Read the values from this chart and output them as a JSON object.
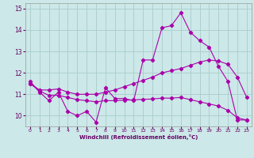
{
  "xlabel": "Windchill (Refroidissement éolien,°C)",
  "background_color": "#cce8e8",
  "grid_color": "#aacccc",
  "line_color": "#aa00aa",
  "x": [
    0,
    1,
    2,
    3,
    4,
    5,
    6,
    7,
    8,
    9,
    10,
    11,
    12,
    13,
    14,
    15,
    16,
    17,
    18,
    19,
    20,
    21,
    22,
    23
  ],
  "line1": [
    11.6,
    11.1,
    10.7,
    11.1,
    10.2,
    10.0,
    10.2,
    9.7,
    11.3,
    10.8,
    10.8,
    10.7,
    12.6,
    12.6,
    14.1,
    14.2,
    14.8,
    13.9,
    13.5,
    13.2,
    12.3,
    11.6,
    9.8,
    9.8
  ],
  "line2": [
    11.5,
    11.2,
    11.2,
    11.25,
    11.1,
    11.0,
    11.0,
    11.0,
    11.1,
    11.2,
    11.35,
    11.5,
    11.65,
    11.8,
    12.0,
    12.1,
    12.2,
    12.35,
    12.5,
    12.6,
    12.55,
    12.4,
    11.8,
    10.85
  ],
  "line3": [
    11.5,
    11.15,
    10.95,
    10.95,
    10.85,
    10.75,
    10.7,
    10.65,
    10.7,
    10.7,
    10.72,
    10.74,
    10.76,
    10.78,
    10.82,
    10.82,
    10.85,
    10.75,
    10.65,
    10.55,
    10.45,
    10.25,
    9.9,
    9.8
  ],
  "ylim": [
    9.5,
    15.25
  ],
  "yticks": [
    10,
    11,
    12,
    13,
    14,
    15
  ],
  "xticks": [
    0,
    1,
    2,
    3,
    4,
    5,
    6,
    7,
    8,
    9,
    10,
    11,
    12,
    13,
    14,
    15,
    16,
    17,
    18,
    19,
    20,
    21,
    22,
    23
  ]
}
